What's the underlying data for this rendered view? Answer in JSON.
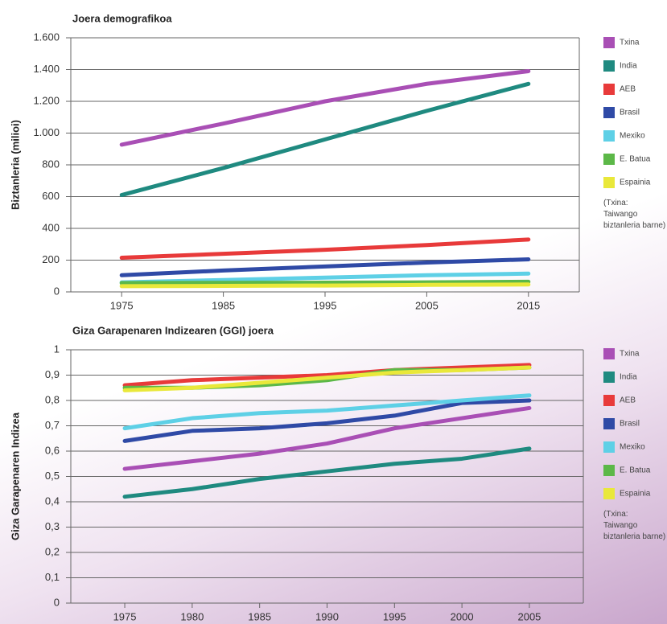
{
  "chart_data": [
    {
      "type": "line",
      "title": "Joera demografikoa",
      "y_label": "Biztanleria (milioi)",
      "x": [
        1975,
        1985,
        1995,
        2005,
        2015
      ],
      "xlim": [
        1970,
        2020
      ],
      "xticks": [
        1975,
        1985,
        1995,
        2005,
        2015
      ],
      "ylim": [
        0,
        1600
      ],
      "yticks": [
        0,
        200,
        400,
        600,
        800,
        {
          "value": 1000,
          "label": "1.000"
        },
        {
          "value": 1200,
          "label": "1.200"
        },
        {
          "value": 1400,
          "label": "1.400"
        },
        {
          "value": 1600,
          "label": "1.600"
        }
      ],
      "grid": true,
      "series": [
        {
          "name": "Txina",
          "color": "#a94fb5",
          "values": [
            927,
            1060,
            1200,
            1310,
            1390
          ]
        },
        {
          "name": "India",
          "color": "#1f8a80",
          "values": [
            610,
            780,
            960,
            1140,
            1310
          ]
        },
        {
          "name": "AEB",
          "color": "#e83a3a",
          "values": [
            215,
            240,
            265,
            295,
            330
          ]
        },
        {
          "name": "Brasil",
          "color": "#2f4aa6",
          "values": [
            105,
            135,
            160,
            185,
            205
          ]
        },
        {
          "name": "Mexiko",
          "color": "#5ed0e6",
          "values": [
            60,
            75,
            90,
            105,
            115
          ]
        },
        {
          "name": "E. Batua",
          "color": "#5cb848",
          "values": [
            56,
            57,
            58,
            60,
            64
          ]
        },
        {
          "name": "Espainia",
          "color": "#e9e83a",
          "values": [
            36,
            38,
            40,
            44,
            47
          ]
        }
      ],
      "note": "(Txina: Taiwango biztanleria barne)"
    },
    {
      "type": "line",
      "title": "Giza Garapenaren Indizearen (GGI) joera",
      "y_label": "Giza Garapenaren Indizea",
      "x": [
        1975,
        1980,
        1985,
        1990,
        1995,
        2000,
        2005
      ],
      "xlim": [
        1971,
        2009
      ],
      "xticks": [
        1975,
        1980,
        1985,
        1990,
        1995,
        2000,
        2005
      ],
      "ylim": [
        0,
        1
      ],
      "yticks": [
        0,
        {
          "value": 0.1,
          "label": "0,1"
        },
        {
          "value": 0.2,
          "label": "0,2"
        },
        {
          "value": 0.3,
          "label": "0,3"
        },
        {
          "value": 0.4,
          "label": "0,4"
        },
        {
          "value": 0.5,
          "label": "0,5"
        },
        {
          "value": 0.6,
          "label": "0,6"
        },
        {
          "value": 0.7,
          "label": "0,7"
        },
        {
          "value": 0.8,
          "label": "0,8"
        },
        {
          "value": 0.9,
          "label": "0,9"
        },
        1
      ],
      "grid": true,
      "series": [
        {
          "name": "Txina",
          "color": "#a94fb5",
          "values": [
            0.53,
            0.56,
            0.59,
            0.63,
            0.69,
            0.73,
            0.77
          ]
        },
        {
          "name": "India",
          "color": "#1f8a80",
          "values": [
            0.42,
            0.45,
            0.49,
            0.52,
            0.55,
            0.57,
            0.61
          ]
        },
        {
          "name": "AEB",
          "color": "#e83a3a",
          "values": [
            0.86,
            0.88,
            0.89,
            0.9,
            0.92,
            0.93,
            0.94
          ]
        },
        {
          "name": "Brasil",
          "color": "#2f4aa6",
          "values": [
            0.64,
            0.68,
            0.69,
            0.71,
            0.74,
            0.79,
            0.8
          ]
        },
        {
          "name": "Mexiko",
          "color": "#5ed0e6",
          "values": [
            0.69,
            0.73,
            0.75,
            0.76,
            0.78,
            0.8,
            0.82
          ]
        },
        {
          "name": "E. Batua",
          "color": "#5cb848",
          "values": [
            0.85,
            0.85,
            0.86,
            0.88,
            0.92,
            0.92,
            0.93
          ]
        },
        {
          "name": "Espainia",
          "color": "#e9e83a",
          "values": [
            0.84,
            0.85,
            0.87,
            0.89,
            0.91,
            0.92,
            0.93
          ]
        }
      ],
      "note": "(Txina: Taiwango biztanleria barne)"
    }
  ]
}
